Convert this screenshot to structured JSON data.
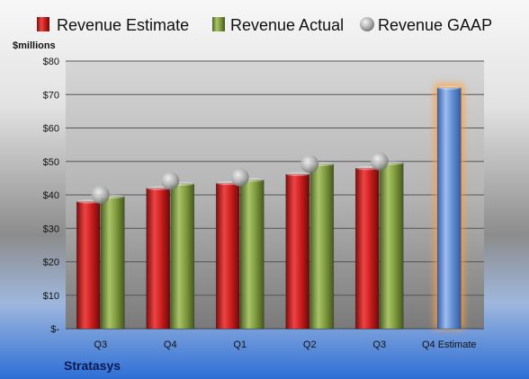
{
  "chart_data": {
    "type": "bar",
    "categories": [
      "Q3",
      "Q4",
      "Q1",
      "Q2",
      "Q3",
      "Q4 Estimate"
    ],
    "series": [
      {
        "name": "Revenue Estimate",
        "kind": "bar",
        "color": "#cc1f1f",
        "values": [
          38,
          42,
          43.5,
          46.2,
          48,
          null
        ]
      },
      {
        "name": "Revenue Actual",
        "kind": "bar",
        "color": "#7f9a3d",
        "values": [
          39.5,
          43.3,
          44.5,
          49.2,
          49.5,
          null
        ]
      },
      {
        "name": "Revenue GAAP",
        "kind": "marker",
        "color": "#a9a9a9",
        "values": [
          40,
          44.2,
          45.2,
          49.2,
          50,
          null
        ]
      },
      {
        "name": "Q4 Estimate",
        "kind": "bar",
        "color": "#5f8dd3",
        "highlight": "#ffa040",
        "values": [
          null,
          null,
          null,
          null,
          null,
          72
        ]
      }
    ],
    "ylabel": "$millions",
    "ylim": [
      0,
      80
    ],
    "yticks": [
      0,
      10,
      20,
      30,
      40,
      50,
      60,
      70,
      80
    ],
    "ytick_labels": [
      "$-",
      "$10",
      "$20",
      "$30",
      "$40",
      "$50",
      "$60",
      "$70",
      "$80"
    ],
    "grid": true,
    "legend_position": "top",
    "title": ""
  },
  "brand": "Stratasys"
}
